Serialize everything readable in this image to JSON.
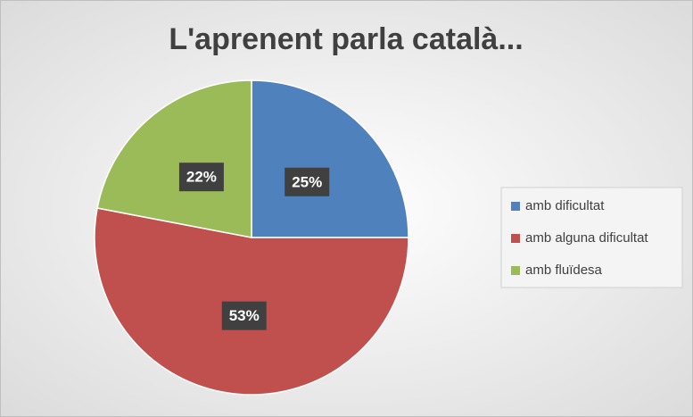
{
  "chart_data": {
    "type": "pie",
    "title": "L'aprenent parla català...",
    "categories": [
      "amb dificultat",
      "amb alguna dificultat",
      "amb fluïdesa"
    ],
    "values": [
      25,
      53,
      22
    ],
    "value_labels": [
      "25%",
      "53%",
      "22%"
    ],
    "colors": [
      "#4f81bd",
      "#c0504d",
      "#9bbb59"
    ],
    "legend": "right"
  }
}
